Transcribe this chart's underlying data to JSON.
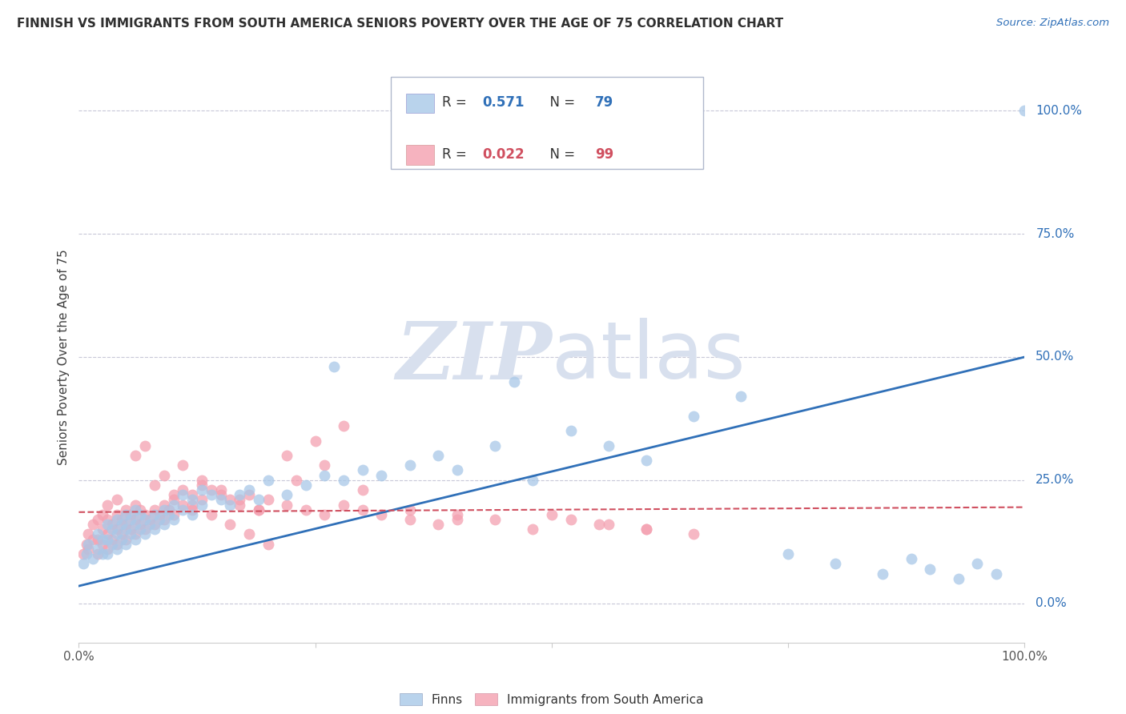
{
  "title": "FINNISH VS IMMIGRANTS FROM SOUTH AMERICA SENIORS POVERTY OVER THE AGE OF 75 CORRELATION CHART",
  "source": "Source: ZipAtlas.com",
  "ylabel": "Seniors Poverty Over the Age of 75",
  "xlim": [
    0.0,
    1.0
  ],
  "ylim": [
    -0.08,
    1.08
  ],
  "yticks": [
    0.0,
    0.25,
    0.5,
    0.75,
    1.0
  ],
  "ytick_labels": [
    "0.0%",
    "25.0%",
    "50.0%",
    "75.0%",
    "100.0%"
  ],
  "blue_R": "0.571",
  "blue_N": "79",
  "pink_R": "0.022",
  "pink_N": "99",
  "blue_color": "#a8c8e8",
  "pink_color": "#f4a0b0",
  "blue_line_color": "#3070b8",
  "pink_line_color": "#d05060",
  "watermark_zip": "ZIP",
  "watermark_atlas": "atlas",
  "watermark_color": "#d8e0ee",
  "title_color": "#303030",
  "axis_label_color": "#3070b8",
  "tick_label_color": "#3070b8",
  "background_color": "#ffffff",
  "grid_color": "#c8c8d8",
  "blue_line_x": [
    0.0,
    1.0
  ],
  "blue_line_y": [
    0.035,
    0.5
  ],
  "pink_line_x": [
    0.0,
    1.0
  ],
  "pink_line_y": [
    0.185,
    0.195
  ],
  "blue_scatter_x": [
    0.005,
    0.008,
    0.01,
    0.015,
    0.02,
    0.02,
    0.025,
    0.025,
    0.03,
    0.03,
    0.03,
    0.035,
    0.035,
    0.04,
    0.04,
    0.04,
    0.045,
    0.045,
    0.05,
    0.05,
    0.05,
    0.055,
    0.055,
    0.06,
    0.06,
    0.06,
    0.065,
    0.065,
    0.07,
    0.07,
    0.075,
    0.08,
    0.08,
    0.085,
    0.09,
    0.09,
    0.095,
    0.1,
    0.1,
    0.11,
    0.11,
    0.12,
    0.12,
    0.13,
    0.13,
    0.14,
    0.15,
    0.16,
    0.17,
    0.18,
    0.19,
    0.2,
    0.22,
    0.24,
    0.26,
    0.28,
    0.3,
    0.32,
    0.35,
    0.38,
    0.4,
    0.44,
    0.48,
    0.52,
    0.56,
    0.6,
    0.65,
    0.7,
    0.75,
    0.8,
    0.85,
    0.88,
    0.9,
    0.93,
    0.95,
    0.97,
    1.0,
    0.27,
    0.46
  ],
  "blue_scatter_y": [
    0.08,
    0.1,
    0.12,
    0.09,
    0.11,
    0.14,
    0.1,
    0.13,
    0.1,
    0.13,
    0.16,
    0.12,
    0.15,
    0.11,
    0.14,
    0.17,
    0.13,
    0.16,
    0.12,
    0.15,
    0.18,
    0.14,
    0.17,
    0.13,
    0.16,
    0.19,
    0.15,
    0.18,
    0.14,
    0.17,
    0.16,
    0.15,
    0.18,
    0.17,
    0.16,
    0.19,
    0.18,
    0.17,
    0.2,
    0.19,
    0.22,
    0.18,
    0.21,
    0.2,
    0.23,
    0.22,
    0.21,
    0.2,
    0.22,
    0.23,
    0.21,
    0.25,
    0.22,
    0.24,
    0.26,
    0.25,
    0.27,
    0.26,
    0.28,
    0.3,
    0.27,
    0.32,
    0.25,
    0.35,
    0.32,
    0.29,
    0.38,
    0.42,
    0.1,
    0.08,
    0.06,
    0.09,
    0.07,
    0.05,
    0.08,
    0.06,
    1.0,
    0.48,
    0.45
  ],
  "pink_scatter_x": [
    0.005,
    0.008,
    0.01,
    0.01,
    0.015,
    0.015,
    0.02,
    0.02,
    0.02,
    0.025,
    0.025,
    0.025,
    0.03,
    0.03,
    0.03,
    0.03,
    0.035,
    0.035,
    0.04,
    0.04,
    0.04,
    0.04,
    0.045,
    0.045,
    0.05,
    0.05,
    0.05,
    0.055,
    0.055,
    0.06,
    0.06,
    0.06,
    0.065,
    0.065,
    0.07,
    0.07,
    0.075,
    0.08,
    0.08,
    0.085,
    0.09,
    0.09,
    0.095,
    0.1,
    0.1,
    0.11,
    0.11,
    0.12,
    0.12,
    0.13,
    0.13,
    0.14,
    0.15,
    0.16,
    0.17,
    0.18,
    0.19,
    0.2,
    0.22,
    0.24,
    0.26,
    0.28,
    0.3,
    0.32,
    0.35,
    0.38,
    0.4,
    0.44,
    0.48,
    0.52,
    0.56,
    0.6,
    0.22,
    0.25,
    0.28,
    0.1,
    0.12,
    0.14,
    0.16,
    0.18,
    0.2,
    0.08,
    0.09,
    0.11,
    0.13,
    0.15,
    0.17,
    0.19,
    0.06,
    0.07,
    0.23,
    0.26,
    0.3,
    0.35,
    0.4,
    0.5,
    0.55,
    0.6,
    0.65
  ],
  "pink_scatter_y": [
    0.1,
    0.12,
    0.11,
    0.14,
    0.13,
    0.16,
    0.1,
    0.13,
    0.17,
    0.12,
    0.15,
    0.18,
    0.11,
    0.14,
    0.17,
    0.2,
    0.13,
    0.16,
    0.12,
    0.15,
    0.18,
    0.21,
    0.14,
    0.17,
    0.13,
    0.16,
    0.19,
    0.15,
    0.18,
    0.14,
    0.17,
    0.2,
    0.16,
    0.19,
    0.15,
    0.18,
    0.17,
    0.16,
    0.19,
    0.18,
    0.17,
    0.2,
    0.19,
    0.18,
    0.21,
    0.2,
    0.23,
    0.19,
    0.22,
    0.21,
    0.24,
    0.23,
    0.22,
    0.21,
    0.2,
    0.22,
    0.19,
    0.21,
    0.2,
    0.19,
    0.18,
    0.2,
    0.19,
    0.18,
    0.17,
    0.16,
    0.18,
    0.17,
    0.15,
    0.17,
    0.16,
    0.15,
    0.3,
    0.33,
    0.36,
    0.22,
    0.2,
    0.18,
    0.16,
    0.14,
    0.12,
    0.24,
    0.26,
    0.28,
    0.25,
    0.23,
    0.21,
    0.19,
    0.3,
    0.32,
    0.25,
    0.28,
    0.23,
    0.19,
    0.17,
    0.18,
    0.16,
    0.15,
    0.14
  ]
}
